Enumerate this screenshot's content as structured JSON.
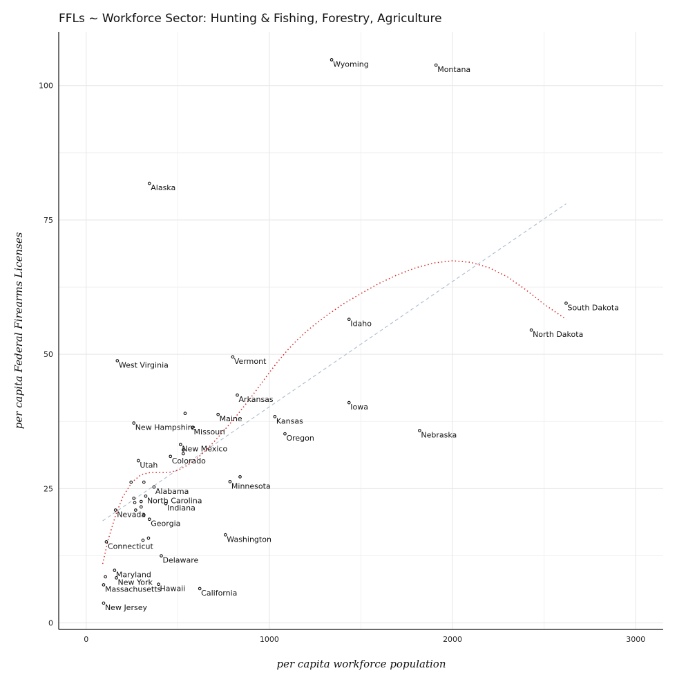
{
  "chart_data": {
    "type": "scatter",
    "title": "FFLs ~ Workforce Sector: Hunting & Fishing, Forestry, Agriculture",
    "xlabel": "per capita workforce population",
    "ylabel": "per capita Federal Firearms Licenses",
    "xlim": [
      -150,
      3150
    ],
    "ylim": [
      -1.2,
      110
    ],
    "x_ticks": [
      0,
      1000,
      2000,
      3000
    ],
    "y_ticks": [
      0,
      25,
      50,
      75,
      100
    ],
    "grid": true,
    "labeled_points": [
      {
        "label": "Wyoming",
        "x": 1340,
        "y": 104.8
      },
      {
        "label": "Montana",
        "x": 1910,
        "y": 103.8
      },
      {
        "label": "Alaska",
        "x": 345,
        "y": 81.8
      },
      {
        "label": "South Dakota",
        "x": 2620,
        "y": 59.5
      },
      {
        "label": "Idaho",
        "x": 1435,
        "y": 56.5
      },
      {
        "label": "North Dakota",
        "x": 2430,
        "y": 54.5
      },
      {
        "label": "Vermont",
        "x": 800,
        "y": 49.5
      },
      {
        "label": "West Virginia",
        "x": 170,
        "y": 48.8
      },
      {
        "label": "Arkansas",
        "x": 825,
        "y": 42.4
      },
      {
        "label": "Iowa",
        "x": 1435,
        "y": 41.0
      },
      {
        "label": "Maine",
        "x": 720,
        "y": 38.8
      },
      {
        "label": "Kansas",
        "x": 1030,
        "y": 38.4
      },
      {
        "label": "New Hampshire",
        "x": 260,
        "y": 37.2
      },
      {
        "label": "Missouri",
        "x": 580,
        "y": 36.4
      },
      {
        "label": "Nebraska",
        "x": 1820,
        "y": 35.8
      },
      {
        "label": "Oregon",
        "x": 1085,
        "y": 35.2
      },
      {
        "label": "New Mexico",
        "x": 515,
        "y": 33.2
      },
      {
        "label": "Colorado",
        "x": 460,
        "y": 31.0
      },
      {
        "label": "Utah",
        "x": 285,
        "y": 30.2
      },
      {
        "label": "Minnesota",
        "x": 785,
        "y": 26.3
      },
      {
        "label": "Alabama",
        "x": 370,
        "y": 25.3
      },
      {
        "label": "North Carolina",
        "x": 325,
        "y": 23.6
      },
      {
        "label": "Indiana",
        "x": 435,
        "y": 22.2
      },
      {
        "label": "Nevada",
        "x": 160,
        "y": 21.0
      },
      {
        "label": "Georgia",
        "x": 345,
        "y": 19.3
      },
      {
        "label": "Washington",
        "x": 760,
        "y": 16.4
      },
      {
        "label": "Connecticut",
        "x": 110,
        "y": 15.1
      },
      {
        "label": "Delaware",
        "x": 410,
        "y": 12.5
      },
      {
        "label": "Maryland",
        "x": 155,
        "y": 9.8
      },
      {
        "label": "New York",
        "x": 165,
        "y": 8.4
      },
      {
        "label": "Massachusetts",
        "x": 95,
        "y": 7.1
      },
      {
        "label": "Hawaii",
        "x": 395,
        "y": 7.2
      },
      {
        "label": "California",
        "x": 620,
        "y": 6.4
      },
      {
        "label": "New Jersey",
        "x": 95,
        "y": 3.7
      }
    ],
    "unlabeled_points": [
      {
        "x": 540,
        "y": 39.0
      },
      {
        "x": 530,
        "y": 32.2
      },
      {
        "x": 530,
        "y": 31.5
      },
      {
        "x": 840,
        "y": 27.2
      },
      {
        "x": 245,
        "y": 26.2
      },
      {
        "x": 315,
        "y": 26.2
      },
      {
        "x": 260,
        "y": 23.2
      },
      {
        "x": 300,
        "y": 22.6
      },
      {
        "x": 265,
        "y": 22.4
      },
      {
        "x": 300,
        "y": 21.6
      },
      {
        "x": 270,
        "y": 21.0
      },
      {
        "x": 315,
        "y": 20.1
      },
      {
        "x": 310,
        "y": 15.4
      },
      {
        "x": 340,
        "y": 15.8
      },
      {
        "x": 105,
        "y": 8.6
      }
    ],
    "trend_linear": {
      "x": [
        90,
        2620
      ],
      "y": [
        19.0,
        78.0
      ]
    },
    "trend_loess": {
      "x": [
        90,
        120,
        160,
        200,
        250,
        300,
        350,
        400,
        450,
        500,
        550,
        600,
        650,
        700,
        750,
        800,
        850,
        900,
        950,
        1000,
        1050,
        1100,
        1150,
        1200,
        1250,
        1300,
        1400,
        1500,
        1600,
        1700,
        1800,
        1900,
        2000,
        2100,
        2200,
        2300,
        2400,
        2500,
        2620
      ],
      "y": [
        11.0,
        15.5,
        20.0,
        23.5,
        26.2,
        27.6,
        28.0,
        28.0,
        28.0,
        28.4,
        29.3,
        30.5,
        32.0,
        33.8,
        35.7,
        37.7,
        39.8,
        42.0,
        44.3,
        46.6,
        48.8,
        50.8,
        52.6,
        54.2,
        55.6,
        56.9,
        59.3,
        61.3,
        63.2,
        64.8,
        66.1,
        67.0,
        67.4,
        67.1,
        66.1,
        64.4,
        62.0,
        59.3,
        56.5
      ]
    },
    "colors": {
      "linear": "#a9bccc",
      "loess": "#d62020",
      "point": "#111111"
    }
  }
}
